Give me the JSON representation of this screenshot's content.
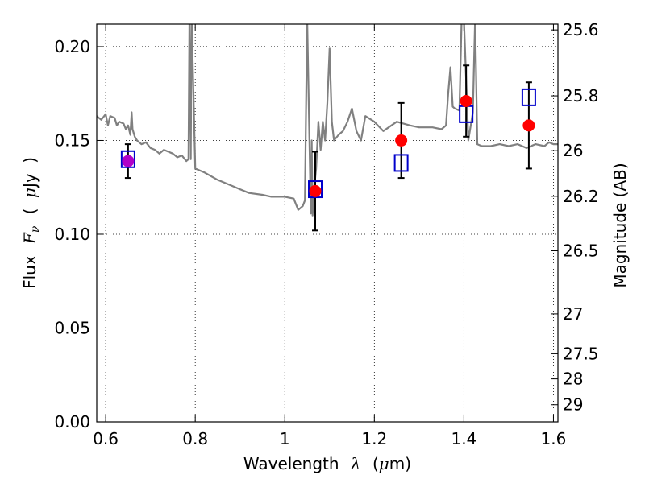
{
  "chart_data": {
    "type": "scatter",
    "xlabel_parts": [
      "Wavelength",
      "λ",
      "(",
      "μ",
      "m)"
    ],
    "ylabel_parts": [
      "Flux",
      "F",
      "ν",
      "(",
      "μ",
      "Jy",
      ")"
    ],
    "y2label": "Magnitude (AB)",
    "xlim": [
      0.58,
      1.61
    ],
    "ylim": [
      0.0,
      0.212
    ],
    "grid": true,
    "x_ticks": [
      0.6,
      0.8,
      1.0,
      1.2,
      1.4,
      1.6
    ],
    "x_tick_labels": [
      "0.6",
      "0.8",
      "1",
      "1.2",
      "1.4",
      "1.6"
    ],
    "y_ticks": [
      0.0,
      0.05,
      0.1,
      0.15,
      0.2
    ],
    "y_tick_labels": [
      "0.00",
      "0.05",
      "0.10",
      "0.15",
      "0.20"
    ],
    "y2_ticks": [
      {
        "label": "25.6",
        "mag": 25.6
      },
      {
        "label": "25.8",
        "mag": 25.8
      },
      {
        "label": "26",
        "mag": 26.0
      },
      {
        "label": "26.2",
        "mag": 26.2
      },
      {
        "label": "26.5",
        "mag": 26.5
      },
      {
        "label": "27",
        "mag": 27.0
      },
      {
        "label": "27.5",
        "mag": 27.5
      },
      {
        "label": "28",
        "mag": 28.0
      },
      {
        "label": "29",
        "mag": 29.0
      }
    ],
    "series": [
      {
        "name": "model_spectrum",
        "kind": "line",
        "color": "#808080",
        "x": [
          0.58,
          0.59,
          0.6,
          0.605,
          0.61,
          0.62,
          0.625,
          0.63,
          0.64,
          0.645,
          0.65,
          0.655,
          0.658,
          0.66,
          0.665,
          0.67,
          0.68,
          0.69,
          0.7,
          0.71,
          0.72,
          0.73,
          0.74,
          0.75,
          0.76,
          0.77,
          0.78,
          0.785,
          0.787,
          0.79,
          0.792,
          0.8,
          0.82,
          0.85,
          0.88,
          0.9,
          0.92,
          0.95,
          0.97,
          1.0,
          1.02,
          1.03,
          1.04,
          1.045,
          1.05,
          1.055,
          1.058,
          1.06,
          1.062,
          1.065,
          1.07,
          1.075,
          1.08,
          1.085,
          1.09,
          1.095,
          1.1,
          1.105,
          1.11,
          1.12,
          1.13,
          1.14,
          1.15,
          1.16,
          1.17,
          1.18,
          1.2,
          1.22,
          1.25,
          1.28,
          1.3,
          1.33,
          1.35,
          1.36,
          1.365,
          1.37,
          1.375,
          1.38,
          1.39,
          1.395,
          1.4,
          1.41,
          1.42,
          1.425,
          1.43,
          1.44,
          1.46,
          1.48,
          1.5,
          1.52,
          1.54,
          1.56,
          1.58,
          1.59,
          1.6,
          1.61
        ],
        "y": [
          0.163,
          0.161,
          0.164,
          0.158,
          0.163,
          0.162,
          0.158,
          0.16,
          0.159,
          0.156,
          0.158,
          0.153,
          0.165,
          0.156,
          0.152,
          0.15,
          0.148,
          0.149,
          0.146,
          0.145,
          0.143,
          0.145,
          0.144,
          0.143,
          0.141,
          0.142,
          0.139,
          0.14,
          0.215,
          0.14,
          0.215,
          0.135,
          0.133,
          0.129,
          0.126,
          0.124,
          0.122,
          0.121,
          0.12,
          0.12,
          0.119,
          0.113,
          0.115,
          0.118,
          0.215,
          0.15,
          0.111,
          0.15,
          0.11,
          0.123,
          0.135,
          0.16,
          0.145,
          0.16,
          0.15,
          0.17,
          0.199,
          0.16,
          0.15,
          0.153,
          0.155,
          0.16,
          0.167,
          0.155,
          0.15,
          0.163,
          0.16,
          0.155,
          0.16,
          0.158,
          0.157,
          0.157,
          0.156,
          0.158,
          0.175,
          0.189,
          0.168,
          0.167,
          0.166,
          0.215,
          0.215,
          0.15,
          0.165,
          0.215,
          0.148,
          0.147,
          0.147,
          0.148,
          0.147,
          0.148,
          0.146,
          0.148,
          0.147,
          0.149,
          0.148,
          0.148
        ]
      },
      {
        "name": "observed",
        "kind": "scatter_errorbar",
        "color": "#ff0000",
        "x": [
          0.65,
          1.068,
          1.26,
          1.405,
          1.545
        ],
        "y": [
          0.139,
          0.123,
          0.15,
          0.171,
          0.158
        ],
        "yerr": [
          0.009,
          0.021,
          0.02,
          0.019,
          0.023
        ]
      },
      {
        "name": "model_photometry",
        "kind": "scatter_square",
        "color": "#0000cc",
        "x": [
          0.65,
          1.068,
          1.26,
          1.405,
          1.545
        ],
        "y": [
          0.14,
          0.124,
          0.138,
          0.164,
          0.173
        ]
      }
    ]
  }
}
